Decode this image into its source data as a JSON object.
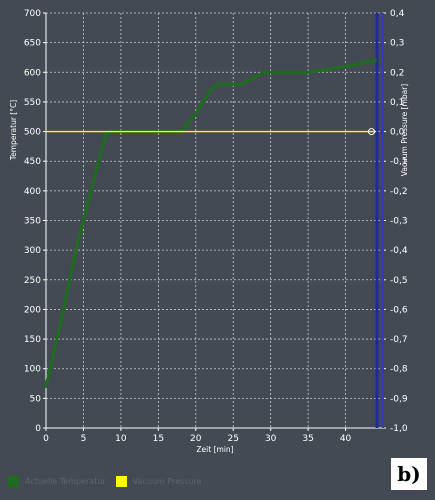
{
  "chart_data": {
    "type": "line",
    "xlabel": "Zeit [min]",
    "ylabel_left": "Temperatur [°C]",
    "ylabel_right": "Vacuum Pressure [mbar]",
    "xlim": [
      0,
      45
    ],
    "ylim_left": [
      0,
      700
    ],
    "ylim_right": [
      -1.0,
      0.4
    ],
    "x_ticks": [
      0,
      5,
      10,
      15,
      20,
      25,
      30,
      35,
      40
    ],
    "y_left_ticks": [
      0,
      50,
      100,
      150,
      200,
      250,
      300,
      350,
      400,
      450,
      500,
      550,
      600,
      650,
      700
    ],
    "y_right_ticks": [
      "0,4",
      "0,3",
      "0,2",
      "0,1",
      "0,0",
      "-0,1",
      "-0,2",
      "-0,3",
      "-0,4",
      "-0,5",
      "-0,6",
      "-0,7",
      "-0,8",
      "-0,9",
      "-1,0"
    ],
    "y_right_values": [
      0.4,
      0.3,
      0.2,
      0.1,
      0.0,
      -0.1,
      -0.2,
      -0.3,
      -0.4,
      -0.5,
      -0.6,
      -0.7,
      -0.8,
      -0.9,
      -1.0
    ],
    "grid": true,
    "cursor_x": 44.2,
    "series": [
      {
        "name": "Actuelle Temperatur",
        "axis": "left",
        "color": "#1f6b1f",
        "x": [
          0,
          2,
          4,
          6,
          8,
          8.5,
          18,
          20,
          22,
          23,
          26,
          27,
          29,
          30,
          35,
          40,
          44
        ],
        "y": [
          70,
          180,
          300,
          400,
          495,
          500,
          500,
          530,
          570,
          580,
          580,
          585,
          600,
          600,
          600,
          610,
          620
        ]
      },
      {
        "name": "Vacuum Pressure",
        "axis": "right",
        "color": "#ffff00",
        "x": [
          0,
          44
        ],
        "y": [
          0.0,
          0.0
        ]
      }
    ]
  },
  "legend": [
    {
      "label": "Actuelle Temperatur",
      "color": "#1f6b1f"
    },
    {
      "label": "Vacuum Pressure",
      "color": "#ffff00"
    }
  ],
  "panel_label": "b)"
}
